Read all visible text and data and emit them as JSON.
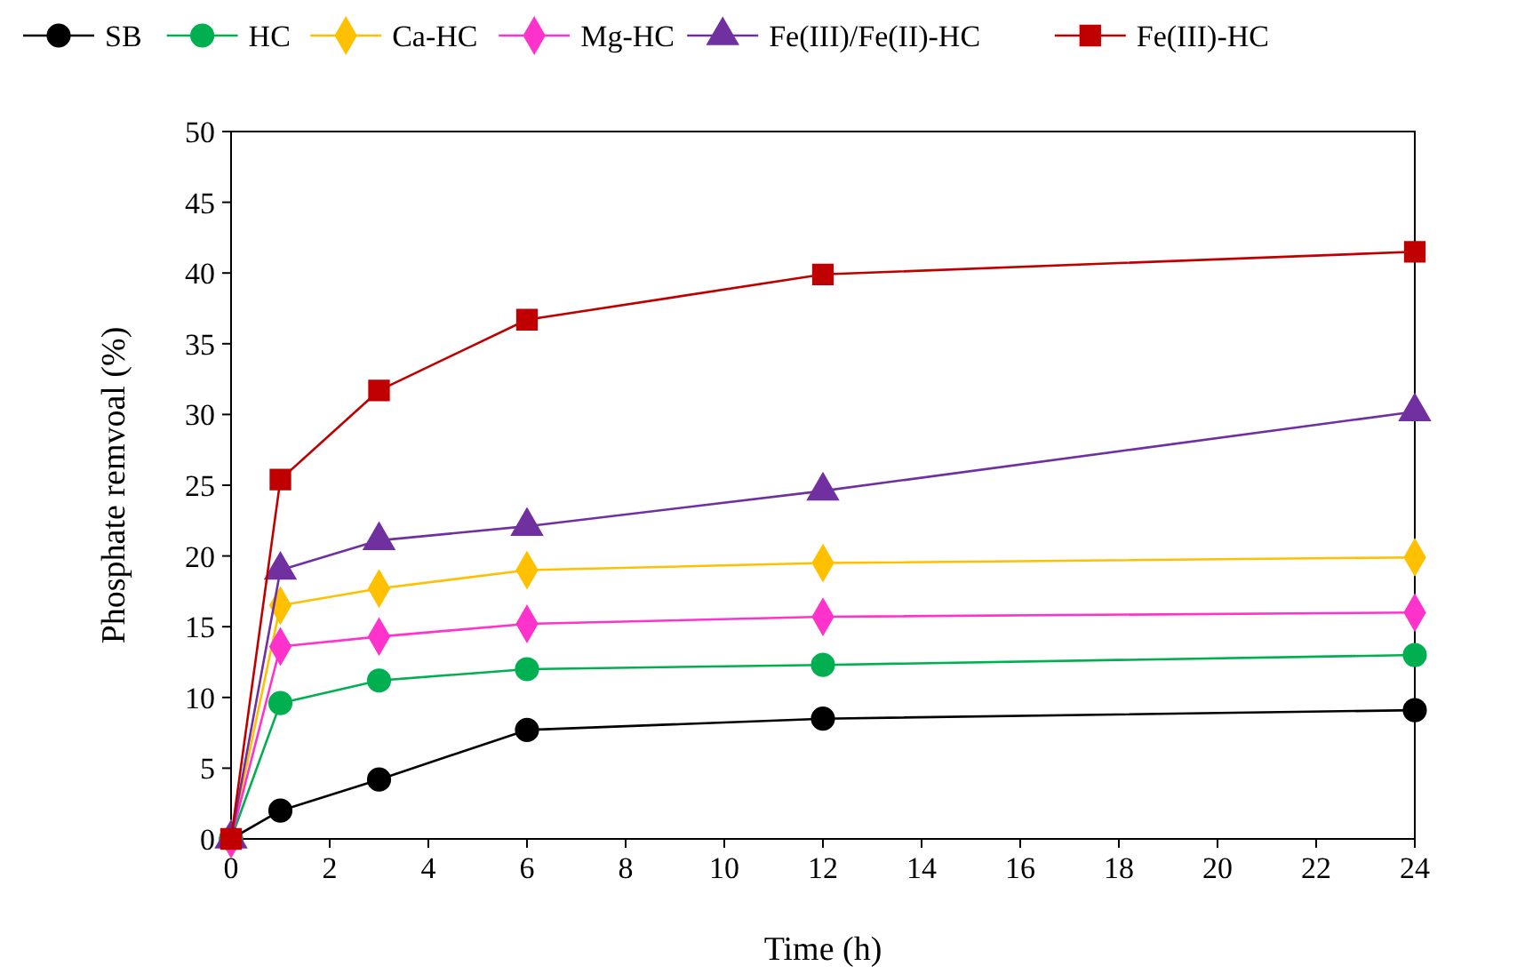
{
  "chart_data": {
    "type": "line",
    "xlabel": "Time (h)",
    "ylabel": "Phosphate remvoal (%)",
    "x": [
      0,
      1,
      3,
      6,
      12,
      24
    ],
    "xlim": [
      0,
      24
    ],
    "xticks": [
      0,
      2,
      4,
      6,
      8,
      10,
      12,
      14,
      16,
      18,
      20,
      22,
      24
    ],
    "ylim": [
      0,
      50
    ],
    "yticks": [
      0,
      5,
      10,
      15,
      20,
      25,
      30,
      35,
      40,
      45,
      50
    ],
    "grid": false,
    "legend": "top",
    "series": [
      {
        "name": "SB",
        "color": "#000000",
        "marker": "circle",
        "values": [
          0,
          2.0,
          4.2,
          7.7,
          8.5,
          9.1
        ]
      },
      {
        "name": "HC",
        "color": "#00b050",
        "marker": "circle",
        "values": [
          0,
          9.6,
          11.2,
          12.0,
          12.3,
          13.0
        ]
      },
      {
        "name": "Ca-HC",
        "color": "#ffc000",
        "marker": "diamond",
        "values": [
          0,
          16.5,
          17.7,
          19.0,
          19.5,
          19.9
        ]
      },
      {
        "name": "Mg-HC",
        "color": "#ff33cc",
        "marker": "diamond",
        "values": [
          0,
          13.6,
          14.3,
          15.2,
          15.7,
          16.0
        ]
      },
      {
        "name": "Fe(III)/Fe(II)-HC",
        "color": "#7030a0",
        "marker": "triangle",
        "values": [
          0,
          19.0,
          21.1,
          22.1,
          24.6,
          30.2
        ]
      },
      {
        "name": "Fe(III)-HC",
        "color": "#c00000",
        "marker": "square",
        "values": [
          0,
          25.4,
          31.7,
          36.7,
          39.9,
          41.5
        ]
      }
    ]
  }
}
